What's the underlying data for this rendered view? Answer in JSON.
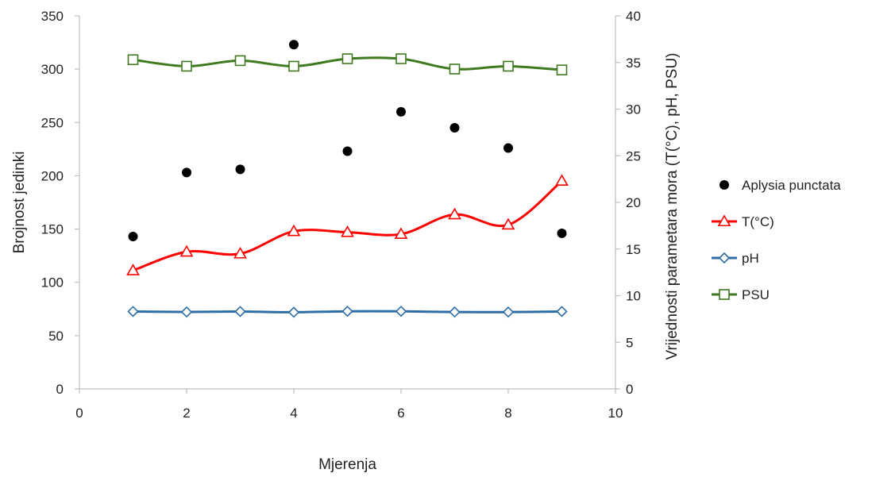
{
  "chart_data": {
    "type": "scatter",
    "xlabel": "Mjerenja",
    "ylabel_left": "Brojnost jedinki",
    "ylabel_right": "Vrijednosti parametara mora (T(°C), pH, PSU)",
    "xlim": [
      0,
      10
    ],
    "xticks": [
      0,
      2,
      4,
      6,
      8,
      10
    ],
    "ylim_left": [
      0,
      350
    ],
    "yticks_left": [
      0,
      50,
      100,
      150,
      200,
      250,
      300,
      350
    ],
    "ylim_right": [
      0,
      40
    ],
    "yticks_right": [
      0,
      5,
      10,
      15,
      20,
      25,
      30,
      35,
      40
    ],
    "grid": false,
    "legend_position": "right",
    "series": [
      {
        "name": "Aplysia punctata",
        "kind": "scatter",
        "axis": "left",
        "marker": "circle-filled",
        "color": "#000000",
        "x": [
          1,
          2,
          3,
          4,
          5,
          6,
          7,
          8,
          9
        ],
        "y": [
          143,
          203,
          206,
          323,
          223,
          260,
          245,
          226,
          146
        ]
      },
      {
        "name": "T(°C)",
        "kind": "line",
        "axis": "right",
        "marker": "triangle-open",
        "color": "#ff0000",
        "x": [
          1,
          2,
          3,
          4,
          5,
          6,
          7,
          8,
          9
        ],
        "y": [
          12.7,
          14.7,
          14.5,
          16.9,
          16.8,
          16.6,
          18.7,
          17.6,
          22.3
        ]
      },
      {
        "name": "pH",
        "kind": "line",
        "axis": "right",
        "marker": "diamond-open",
        "color": "#2e6ea6",
        "x": [
          1,
          2,
          3,
          4,
          5,
          6,
          7,
          8,
          9
        ],
        "y": [
          8.3,
          8.25,
          8.3,
          8.22,
          8.32,
          8.32,
          8.24,
          8.24,
          8.3
        ]
      },
      {
        "name": "PSU",
        "kind": "line",
        "axis": "right",
        "marker": "square-open",
        "color": "#3f7a1f",
        "x": [
          1,
          2,
          3,
          4,
          5,
          6,
          7,
          8,
          9
        ],
        "y": [
          35.3,
          34.6,
          35.2,
          34.6,
          35.4,
          35.4,
          34.3,
          34.6,
          34.2
        ]
      }
    ]
  }
}
